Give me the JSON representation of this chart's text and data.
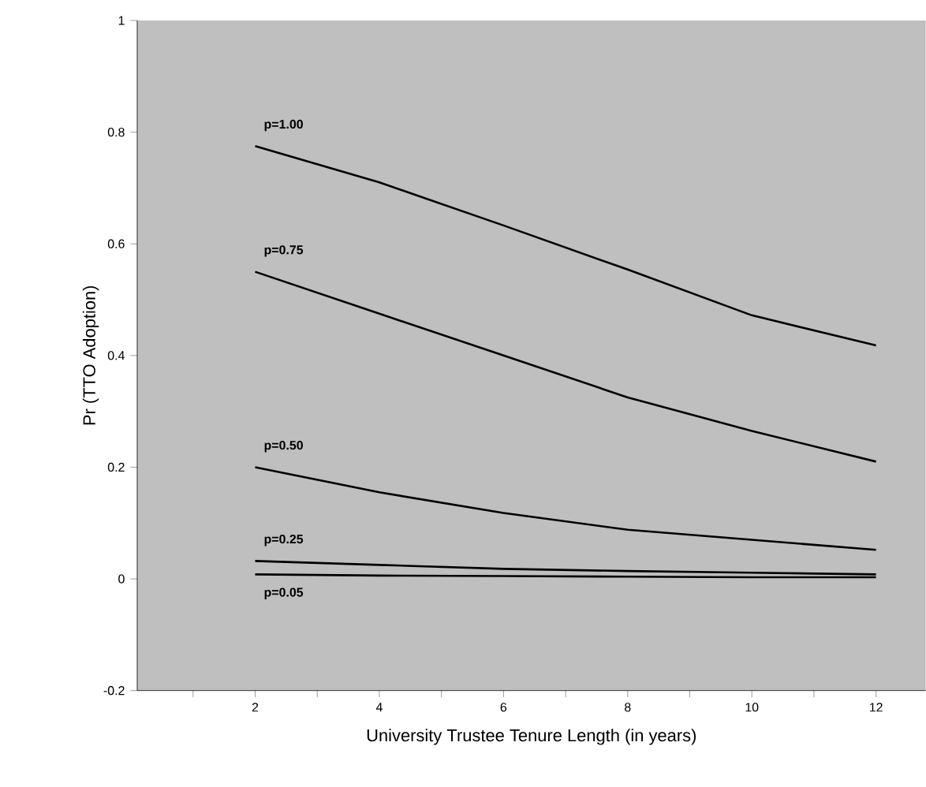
{
  "chart_data": {
    "type": "line",
    "xlabel": "University Trustee Tenure Length (in years)",
    "ylabel": "Pr (TTO Adoption)",
    "x": [
      2,
      4,
      6,
      8,
      10,
      12
    ],
    "series": [
      {
        "name": "p=1.00",
        "color": "#000000",
        "values": [
          0.775,
          0.71,
          0.633,
          0.554,
          0.472,
          0.418
        ]
      },
      {
        "name": "p=0.75",
        "color": "#000000",
        "values": [
          0.55,
          0.475,
          0.4,
          0.325,
          0.265,
          0.21
        ]
      },
      {
        "name": "p=0.50",
        "color": "#000000",
        "values": [
          0.2,
          0.155,
          0.118,
          0.088,
          0.07,
          0.052
        ]
      },
      {
        "name": "p=0.25",
        "color": "#000000",
        "values": [
          0.032,
          0.025,
          0.018,
          0.014,
          0.011,
          0.008
        ]
      },
      {
        "name": "p=0.05",
        "color": "#000000",
        "values": [
          0.008,
          0.006,
          0.005,
          0.004,
          0.003,
          0.003
        ]
      }
    ],
    "xlim": [
      0.1,
      12.8
    ],
    "ylim": [
      -0.2,
      1
    ],
    "xticks": [
      {
        "value": 1,
        "label": null
      },
      2,
      {
        "value": 3,
        "label": null
      },
      4,
      {
        "value": 5,
        "label": null
      },
      6,
      {
        "value": 7,
        "label": null
      },
      8,
      {
        "value": 9,
        "label": null
      },
      10,
      {
        "value": 11,
        "label": null
      },
      12
    ],
    "yticks": [
      -0.2,
      0,
      0.2,
      0.4,
      0.6,
      0.8,
      1
    ],
    "marker": "none",
    "line_style": "solid"
  }
}
